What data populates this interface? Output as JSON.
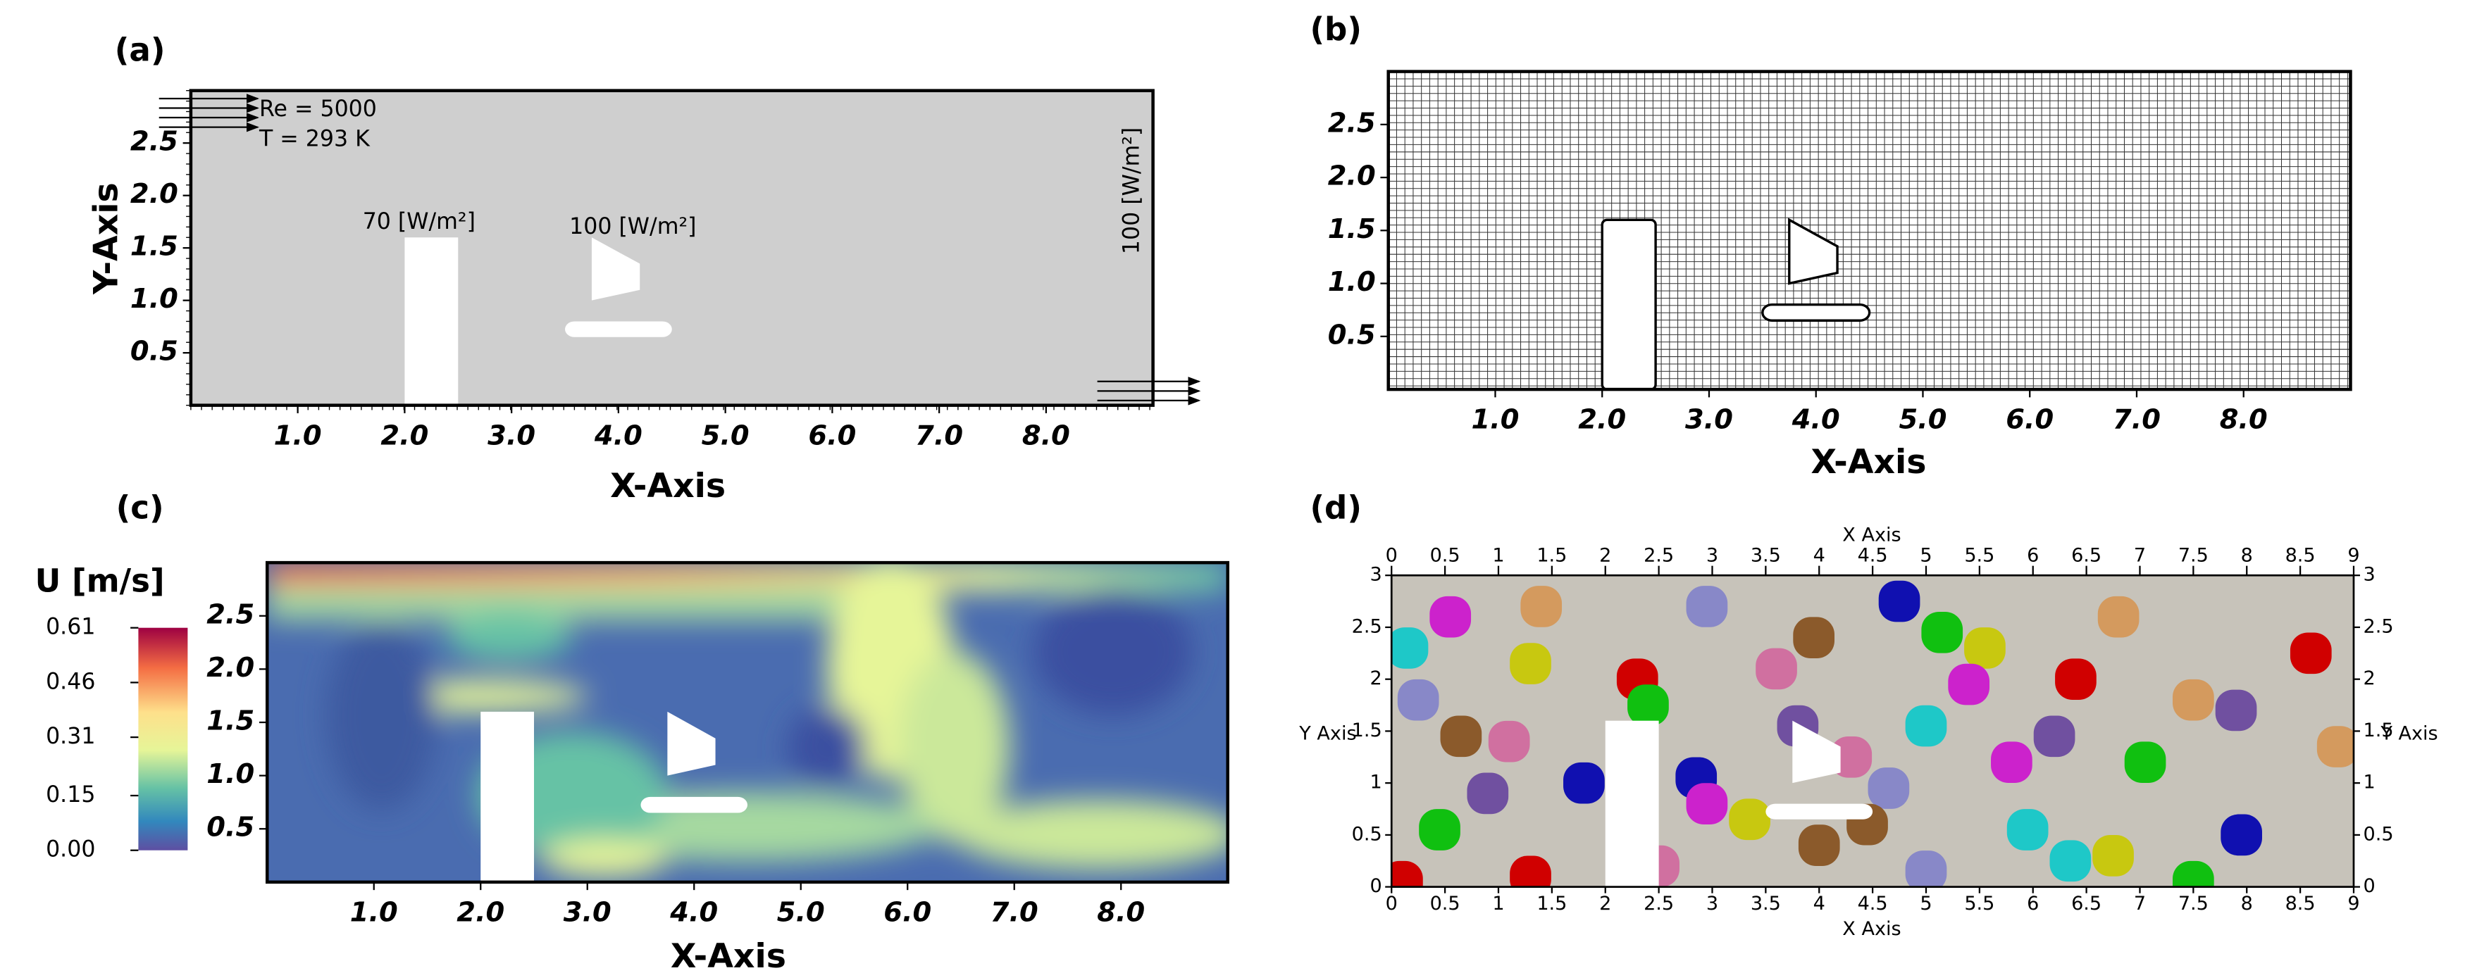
{
  "panels": [
    {
      "label": "(a)",
      "xlabel": "X-Axis",
      "ylabel": "Y-Axis",
      "xlim": [
        0,
        9
      ],
      "ylim": [
        0,
        3
      ],
      "xticks": [
        {
          "value": 1,
          "label": "1.0"
        },
        {
          "value": 2,
          "label": "2.0"
        },
        {
          "value": 3,
          "label": "3.0"
        },
        {
          "value": 4,
          "label": "4.0"
        },
        {
          "value": 5,
          "label": "5.0"
        },
        {
          "value": 6,
          "label": "6.0"
        },
        {
          "value": 7,
          "label": "7.0"
        },
        {
          "value": 8,
          "label": "8.0"
        }
      ],
      "yticks": [
        0.5,
        {
          "value": 1,
          "label": "1.0"
        },
        1.5,
        {
          "value": 2,
          "label": "2.0"
        },
        2.5
      ],
      "annotations": [
        "Re = 5000",
        "T = 293 K",
        "70 [W/m²]",
        "100 [W/m²]",
        "100 [W/m²]"
      ]
    },
    {
      "label": "(b)",
      "xlabel": "X-Axis",
      "xlim": [
        0,
        9
      ],
      "ylim": [
        0,
        3
      ],
      "xticks": [
        {
          "value": 1,
          "label": "1.0"
        },
        {
          "value": 2,
          "label": "2.0"
        },
        {
          "value": 3,
          "label": "3.0"
        },
        {
          "value": 4,
          "label": "4.0"
        },
        {
          "value": 5,
          "label": "5.0"
        },
        {
          "value": 6,
          "label": "6.0"
        },
        {
          "value": 7,
          "label": "7.0"
        },
        {
          "value": 8,
          "label": "8.0"
        }
      ],
      "yticks": [
        0.5,
        {
          "value": 1,
          "label": "1.0"
        },
        1.5,
        {
          "value": 2,
          "label": "2.0"
        },
        2.5
      ]
    },
    {
      "label": "(c)",
      "xlabel": "X-Axis",
      "xlim": [
        0,
        9
      ],
      "ylim": [
        0,
        3
      ],
      "xticks": [
        {
          "value": 1,
          "label": "1.0"
        },
        {
          "value": 2,
          "label": "2.0"
        },
        {
          "value": 3,
          "label": "3.0"
        },
        {
          "value": 4,
          "label": "4.0"
        },
        {
          "value": 5,
          "label": "5.0"
        },
        {
          "value": 6,
          "label": "6.0"
        },
        {
          "value": 7,
          "label": "7.0"
        },
        {
          "value": 8,
          "label": "8.0"
        }
      ],
      "yticks": [
        0.5,
        {
          "value": 1,
          "label": "1.0"
        },
        1.5,
        {
          "value": 2,
          "label": "2.0"
        },
        2.5
      ],
      "colorbar": {
        "title": "U [m/s]",
        "lim": [
          0,
          0.61
        ],
        "ticks": [
          0.61,
          0.46,
          0.31,
          0.15,
          {
            "value": 0,
            "label": "0.00"
          }
        ]
      }
    },
    {
      "label": "(d)",
      "xlabel": "X Axis",
      "ylabel": "Y Axis",
      "xlim": [
        0,
        9
      ],
      "ylim": [
        0,
        3
      ],
      "xticks": [
        0,
        0.5,
        1,
        1.5,
        2,
        2.5,
        3,
        3.5,
        4,
        4.5,
        5,
        5.5,
        6,
        6.5,
        7,
        7.5,
        8,
        8.5,
        9
      ],
      "yticks": [
        0,
        0.5,
        1,
        1.5,
        2,
        2.5,
        3
      ]
    }
  ]
}
